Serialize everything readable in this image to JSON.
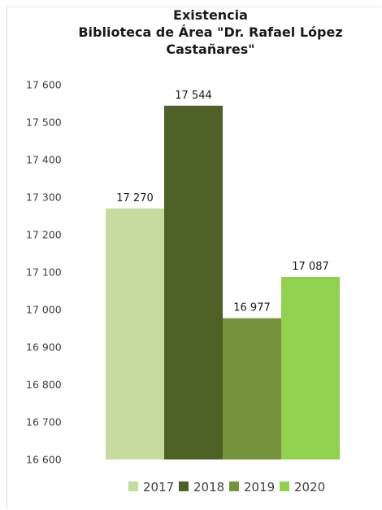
{
  "chart_data": {
    "type": "bar",
    "title_line1": "Existencia",
    "title_line2": "Biblioteca de Área \"Dr. Rafael López",
    "title_line3": "Castañares\"",
    "categories": [
      "2017",
      "2018",
      "2019",
      "2020"
    ],
    "values": [
      17270,
      17544,
      16977,
      17087
    ],
    "value_labels": [
      "17 270",
      "17 544",
      "16 977",
      "17 087"
    ],
    "colors": [
      "#c5dba0",
      "#4e6127",
      "#76923c",
      "#92d050"
    ],
    "ylim": [
      16600,
      17600
    ],
    "yticks": [
      16600,
      16700,
      16800,
      16900,
      17000,
      17100,
      17200,
      17300,
      17400,
      17500,
      17600
    ],
    "ytick_labels": [
      "16 600",
      "16 700",
      "16 800",
      "16 900",
      "17 000",
      "17 100",
      "17 200",
      "17 300",
      "17 400",
      "17 500",
      "17 600"
    ],
    "grid": false,
    "legend": "bottom"
  }
}
